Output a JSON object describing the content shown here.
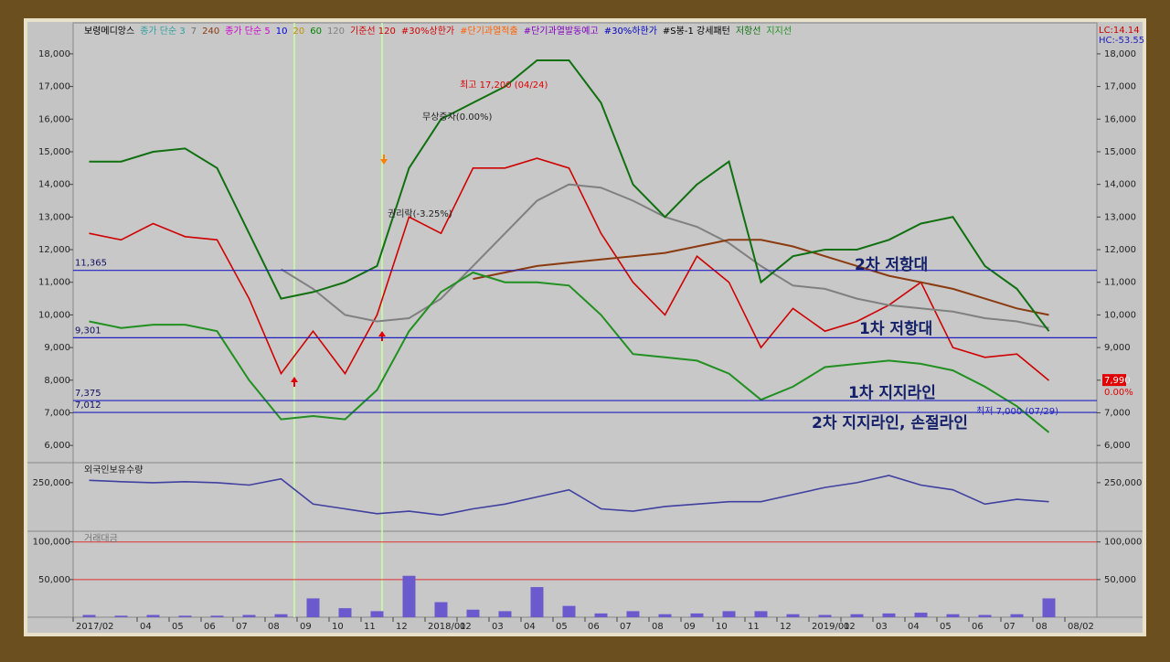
{
  "chart_data": [
    {
      "type": "line",
      "title": "보령메디앙스",
      "categories": [
        "2017/02",
        null,
        "04",
        "05",
        "06",
        "07",
        "08",
        "09",
        "10",
        "11",
        "12",
        "2018/01",
        "02",
        "03",
        "04",
        "05",
        "06",
        "07",
        "08",
        "09",
        "10",
        "11",
        "12",
        "2019/01",
        "02",
        "03",
        "04",
        "05",
        "06",
        "07",
        "08",
        "08/02"
      ],
      "series": [
        {
          "name": "보령메디앙스",
          "color": "#d00000",
          "values": [
            12500,
            12300,
            12800,
            12400,
            12300,
            10500,
            8200,
            9500,
            8200,
            10000,
            13000,
            12500,
            14500,
            14500,
            14800,
            14500,
            12500,
            11000,
            10000,
            11800,
            11000,
            9000,
            10200,
            9500,
            9800,
            10300,
            11000,
            9000,
            8700,
            8800,
            7990,
            null
          ]
        },
        {
          "name": "120",
          "color": "#808080",
          "values": [
            null,
            null,
            null,
            null,
            null,
            null,
            11400,
            10800,
            10000,
            9800,
            9900,
            10500,
            11500,
            12500,
            13500,
            14000,
            13900,
            13500,
            13000,
            12700,
            12200,
            11500,
            10900,
            10800,
            10500,
            10300,
            10200,
            10100,
            9900,
            9800,
            9600,
            null
          ]
        },
        {
          "name": "240",
          "color": "#8b3a10",
          "values": [
            null,
            null,
            null,
            null,
            null,
            null,
            null,
            null,
            null,
            null,
            null,
            null,
            11100,
            11300,
            11500,
            11600,
            11700,
            11800,
            11900,
            12100,
            12300,
            12300,
            12100,
            11800,
            11500,
            11200,
            11000,
            10800,
            10500,
            10200,
            10000,
            null
          ]
        },
        {
          "name": "저항선",
          "color": "#107010",
          "values": [
            14700,
            14700,
            15000,
            15100,
            14500,
            12500,
            10500,
            10700,
            11000,
            11500,
            14500,
            16000,
            16500,
            17000,
            17800,
            17800,
            16500,
            14000,
            13000,
            14000,
            14700,
            11000,
            11800,
            12000,
            12000,
            12300,
            12800,
            13000,
            11500,
            10800,
            9500,
            null
          ]
        },
        {
          "name": "지지선",
          "color": "#209020",
          "values": [
            9800,
            9600,
            9700,
            9700,
            9500,
            8000,
            6800,
            6900,
            6800,
            7700,
            9500,
            10700,
            11300,
            11000,
            11000,
            10900,
            10000,
            8800,
            8700,
            8600,
            8200,
            7400,
            7800,
            8400,
            8500,
            8600,
            8500,
            8300,
            7800,
            7200,
            6400,
            null
          ]
        }
      ],
      "legend_items": [
        {
          "text": "종가 단순 3",
          "color": "#30a0a0"
        },
        {
          "text": "7",
          "color": "#707070"
        },
        {
          "text": "종가 단순 5",
          "color": "#d000d0"
        },
        {
          "text": "10",
          "color": "#0000e0"
        },
        {
          "text": "20",
          "color": "#c09000"
        },
        {
          "text": "60",
          "color": "#008000"
        },
        {
          "text": "기준선 120",
          "color": "#d00000"
        },
        {
          "text": "#30%상한가",
          "color": "#d00000"
        },
        {
          "text": "#단기과열적출",
          "color": "#ff6000"
        },
        {
          "text": "#단기과열발동예고",
          "color": "#8000c0"
        },
        {
          "text": "#30%하한가",
          "color": "#0000c0"
        },
        {
          "text": "#S봉-1 강세패턴",
          "color": "#000000"
        }
      ],
      "indicators": [
        "LC:14.14",
        "HC:-53.55"
      ],
      "ylim": [
        5500,
        18950
      ],
      "yticks": [
        {
          "value": 6000,
          "label": "6,000"
        },
        {
          "value": 7000,
          "label": "7,000"
        },
        {
          "value": 8000,
          "label": "8,000"
        },
        {
          "value": 9000,
          "label": "9,000"
        },
        {
          "value": 10000,
          "label": "10,000"
        },
        {
          "value": 11000,
          "label": "11,000"
        },
        {
          "value": 12000,
          "label": "12,000"
        },
        {
          "value": 13000,
          "label": "13,000"
        },
        {
          "value": 14000,
          "label": "14,000"
        },
        {
          "value": 15000,
          "label": "15,000"
        },
        {
          "value": 16000,
          "label": "16,000"
        },
        {
          "value": 17000,
          "label": "17,000"
        },
        {
          "value": 18000,
          "label": "18,000"
        }
      ],
      "hlines": [
        {
          "value": 11365,
          "label": "11,365"
        },
        {
          "value": 9301,
          "label": "9,301"
        },
        {
          "value": 7375,
          "label": "7,375"
        },
        {
          "value": 7012,
          "label": "7,012"
        }
      ],
      "last_price": {
        "value": 7990,
        "label": "7,990"
      },
      "last_change": "0.00%",
      "annotations": [
        "2차 저항대",
        "1차 저항대",
        "1차 지지라인",
        "2차 지지라인, 손절라인",
        "최고 17,200 (04/24)",
        "최저 7,000 (07/29)",
        "무상증자(0.00%)",
        "권리락(-3.25%)"
      ]
    },
    {
      "type": "line",
      "title": "외국인보유수량",
      "series": [
        {
          "name": "외국인보유수량",
          "color": "#4040a0",
          "values": [
            255000,
            252000,
            250000,
            252000,
            250000,
            245000,
            258000,
            205000,
            195000,
            185000,
            190000,
            182000,
            195000,
            205000,
            220000,
            235000,
            195000,
            190000,
            200000,
            205000,
            210000,
            210000,
            225000,
            240000,
            250000,
            265000,
            245000,
            235000,
            205000,
            215000,
            210000,
            null
          ]
        }
      ],
      "ylim": [
        150000,
        290000
      ],
      "yticks": [
        {
          "value": 250000,
          "label": "250,000"
        }
      ]
    },
    {
      "type": "bar",
      "title": "거래대금",
      "color": "#6a5acd",
      "values": [
        3000,
        2000,
        3000,
        2000,
        2000,
        3000,
        4000,
        25000,
        12000,
        8000,
        55000,
        20000,
        10000,
        8000,
        40000,
        15000,
        5000,
        8000,
        4000,
        5000,
        8000,
        8000,
        4000,
        3000,
        4000,
        5000,
        6000,
        4000,
        3000,
        4000,
        25000,
        null
      ],
      "ylim": [
        0,
        113000
      ],
      "yticks": [
        {
          "value": 50000,
          "label": "50,000"
        },
        {
          "value": 100000,
          "label": "100,000"
        }
      ],
      "grid": true
    }
  ]
}
